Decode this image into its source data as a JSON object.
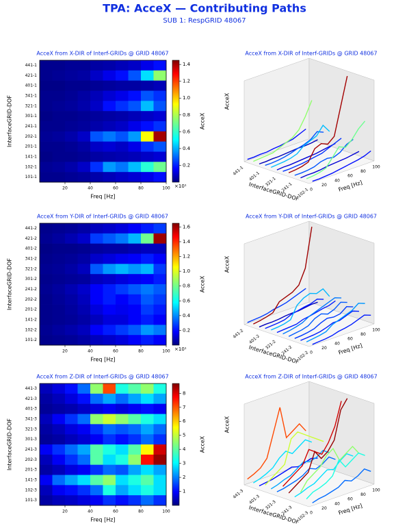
{
  "header": {
    "title": "TPA: AcceX — Contributing Paths",
    "subtitle": "SUB 1:  RespGRID 48067"
  },
  "chart_data": [
    {
      "type": "heatmap",
      "title": "AcceX from X-DIR of Interf-GRIDs @ GRID 48067",
      "x": [
        5,
        15,
        25,
        35,
        45,
        55,
        65,
        75,
        85,
        95
      ],
      "categories": [
        "441-1",
        "421-1",
        "401-1",
        "341-1",
        "321-1",
        "301-1",
        "241-1",
        "202-1",
        "201-1",
        "141-1",
        "102-1",
        "101-1"
      ],
      "values": [
        [
          0.02,
          0.02,
          0.03,
          0.03,
          0.05,
          0.06,
          0.08,
          0.1,
          0.15,
          0.2
        ],
        [
          0.02,
          0.03,
          0.04,
          0.05,
          0.1,
          0.15,
          0.2,
          0.3,
          0.5,
          0.75
        ],
        [
          0.01,
          0.01,
          0.02,
          0.02,
          0.03,
          0.04,
          0.05,
          0.05,
          0.06,
          0.08
        ],
        [
          0.02,
          0.02,
          0.03,
          0.05,
          0.08,
          0.12,
          0.15,
          0.2,
          0.3,
          0.25
        ],
        [
          0.02,
          0.03,
          0.04,
          0.06,
          0.1,
          0.2,
          0.25,
          0.3,
          0.45,
          0.3
        ],
        [
          0.01,
          0.02,
          0.02,
          0.03,
          0.04,
          0.05,
          0.06,
          0.08,
          0.1,
          0.12
        ],
        [
          0.02,
          0.02,
          0.03,
          0.04,
          0.06,
          0.08,
          0.1,
          0.15,
          0.2,
          0.25
        ],
        [
          0.03,
          0.04,
          0.06,
          0.1,
          0.3,
          0.35,
          0.3,
          0.4,
          0.9,
          1.4
        ],
        [
          0.02,
          0.02,
          0.03,
          0.05,
          0.1,
          0.12,
          0.1,
          0.15,
          0.25,
          0.3
        ],
        [
          0.01,
          0.02,
          0.02,
          0.03,
          0.05,
          0.06,
          0.07,
          0.08,
          0.1,
          0.12
        ],
        [
          0.03,
          0.04,
          0.06,
          0.1,
          0.25,
          0.4,
          0.35,
          0.45,
          0.6,
          0.7
        ],
        [
          0.02,
          0.02,
          0.03,
          0.04,
          0.06,
          0.08,
          0.1,
          0.12,
          0.15,
          0.2
        ]
      ],
      "xlim": [
        0,
        100
      ],
      "xticks": [
        20,
        40,
        60,
        80,
        100
      ],
      "xlabel": "Freq [Hz]",
      "ylabel": "InterfaceGRID-DOF",
      "colorbar": {
        "label": "AcceX",
        "lim": [
          0,
          1.45
        ],
        "ticks": [
          0.2,
          0.4,
          0.6,
          0.8,
          {
            "value": 1,
            "label": "1.0"
          },
          1.2,
          1.4
        ],
        "offset_label": "×10¹"
      },
      "surface": {
        "xticks": [
          0,
          20,
          40,
          60,
          80,
          100
        ],
        "row_labels": [
          "441-1",
          "401-1",
          "321-1",
          "241-1",
          "102-1"
        ]
      }
    },
    {
      "type": "heatmap",
      "title": "AcceX from Y-DIR of Interf-GRIDs @ GRID 48067",
      "x": [
        5,
        15,
        25,
        35,
        45,
        55,
        65,
        75,
        85,
        95
      ],
      "categories": [
        "441-2",
        "421-2",
        "401-2",
        "341-2",
        "321-2",
        "301-2",
        "241-2",
        "202-2",
        "201-2",
        "141-2",
        "102-2",
        "101-2"
      ],
      "values": [
        [
          0.02,
          0.03,
          0.04,
          0.06,
          0.1,
          0.12,
          0.15,
          0.2,
          0.25,
          0.3
        ],
        [
          0.03,
          0.05,
          0.08,
          0.12,
          0.3,
          0.35,
          0.4,
          0.5,
          0.8,
          1.6
        ],
        [
          0.01,
          0.02,
          0.02,
          0.03,
          0.05,
          0.06,
          0.06,
          0.08,
          0.1,
          0.1
        ],
        [
          0.02,
          0.03,
          0.04,
          0.06,
          0.12,
          0.15,
          0.18,
          0.2,
          0.25,
          0.2
        ],
        [
          0.03,
          0.04,
          0.06,
          0.1,
          0.35,
          0.45,
          0.5,
          0.45,
          0.5,
          0.3
        ],
        [
          0.02,
          0.03,
          0.04,
          0.05,
          0.1,
          0.12,
          0.15,
          0.18,
          0.2,
          0.25
        ],
        [
          0.03,
          0.05,
          0.08,
          0.12,
          0.2,
          0.25,
          0.3,
          0.35,
          0.4,
          0.35
        ],
        [
          0.02,
          0.04,
          0.06,
          0.1,
          0.2,
          0.25,
          0.2,
          0.25,
          0.35,
          0.3
        ],
        [
          0.02,
          0.03,
          0.05,
          0.08,
          0.15,
          0.2,
          0.18,
          0.2,
          0.3,
          0.25
        ],
        [
          0.02,
          0.03,
          0.04,
          0.06,
          0.1,
          0.15,
          0.15,
          0.2,
          0.25,
          0.2
        ],
        [
          0.03,
          0.05,
          0.07,
          0.1,
          0.2,
          0.25,
          0.3,
          0.35,
          0.45,
          0.4
        ],
        [
          0.02,
          0.03,
          0.04,
          0.06,
          0.1,
          0.12,
          0.15,
          0.2,
          0.25,
          0.2
        ]
      ],
      "xlim": [
        0,
        100
      ],
      "xticks": [
        20,
        40,
        60,
        80,
        100
      ],
      "xlabel": "Freq [Hz]",
      "ylabel": "InterfaceGRID-DOF",
      "colorbar": {
        "label": "AcceX",
        "lim": [
          0,
          1.65
        ],
        "ticks": [
          0.2,
          0.4,
          0.6,
          0.8,
          {
            "value": 1,
            "label": "1.0"
          },
          1.2,
          1.4,
          1.6
        ],
        "offset_label": "×10¹"
      },
      "surface": {
        "xticks": [
          0,
          20,
          40,
          60,
          80,
          100
        ],
        "row_labels": [
          "441-2",
          "401-2",
          "321-2",
          "241-2",
          "102-2"
        ]
      }
    },
    {
      "type": "heatmap",
      "title": "AcceX from Z-DIR of Interf-GRIDs @ GRID 48067",
      "x": [
        5,
        15,
        25,
        35,
        45,
        55,
        65,
        75,
        85,
        95
      ],
      "categories": [
        "441-3",
        "421-3",
        "401-3",
        "341-3",
        "321-3",
        "301-3",
        "241-3",
        "202-3",
        "201-3",
        "141-3",
        "102-3",
        "101-3"
      ],
      "values": [
        [
          0.5,
          0.8,
          1.2,
          2.0,
          4.5,
          7.0,
          3.5,
          4.0,
          4.5,
          3.5
        ],
        [
          0.3,
          0.5,
          0.8,
          1.2,
          2.0,
          2.5,
          2.0,
          2.5,
          3.0,
          2.5
        ],
        [
          0.2,
          0.3,
          0.4,
          0.6,
          0.8,
          1.0,
          0.8,
          1.0,
          1.2,
          1.0
        ],
        [
          0.5,
          1.0,
          1.5,
          2.0,
          4.5,
          5.0,
          4.5,
          4.0,
          3.5,
          3.0
        ],
        [
          0.3,
          0.5,
          0.8,
          1.0,
          1.5,
          2.0,
          1.8,
          2.0,
          2.5,
          2.0
        ],
        [
          0.2,
          0.3,
          0.5,
          0.7,
          1.0,
          1.5,
          1.2,
          1.5,
          2.0,
          1.5
        ],
        [
          1.0,
          1.5,
          2.0,
          2.5,
          4.0,
          3.5,
          3.0,
          4.0,
          5.5,
          8.0
        ],
        [
          0.5,
          1.0,
          1.5,
          2.0,
          4.0,
          3.0,
          3.5,
          4.5,
          7.5,
          8.5
        ],
        [
          0.3,
          0.5,
          0.8,
          1.0,
          1.5,
          2.0,
          1.8,
          2.5,
          3.0,
          2.5
        ],
        [
          1.0,
          2.0,
          2.5,
          3.0,
          4.0,
          4.5,
          3.0,
          3.5,
          4.0,
          3.0
        ],
        [
          0.5,
          1.0,
          1.2,
          1.5,
          2.0,
          3.5,
          2.5,
          3.0,
          3.5,
          3.0
        ],
        [
          0.3,
          0.5,
          0.6,
          0.8,
          1.0,
          1.5,
          1.2,
          1.5,
          2.0,
          1.5
        ]
      ],
      "xlim": [
        0,
        100
      ],
      "xticks": [
        20,
        40,
        60,
        80,
        100
      ],
      "xlabel": "Freq [Hz]",
      "ylabel": "InterfaceGRID-DOF",
      "colorbar": {
        "label": "AcceX",
        "lim": [
          0,
          8.7
        ],
        "ticks": [
          1,
          2,
          3,
          4,
          5,
          6,
          7,
          8
        ]
      },
      "surface": {
        "xticks": [
          0,
          20,
          40,
          60,
          80,
          100
        ],
        "row_labels": [
          "441-3",
          "401-3",
          "321-3",
          "241-3",
          "102-3"
        ]
      }
    }
  ]
}
